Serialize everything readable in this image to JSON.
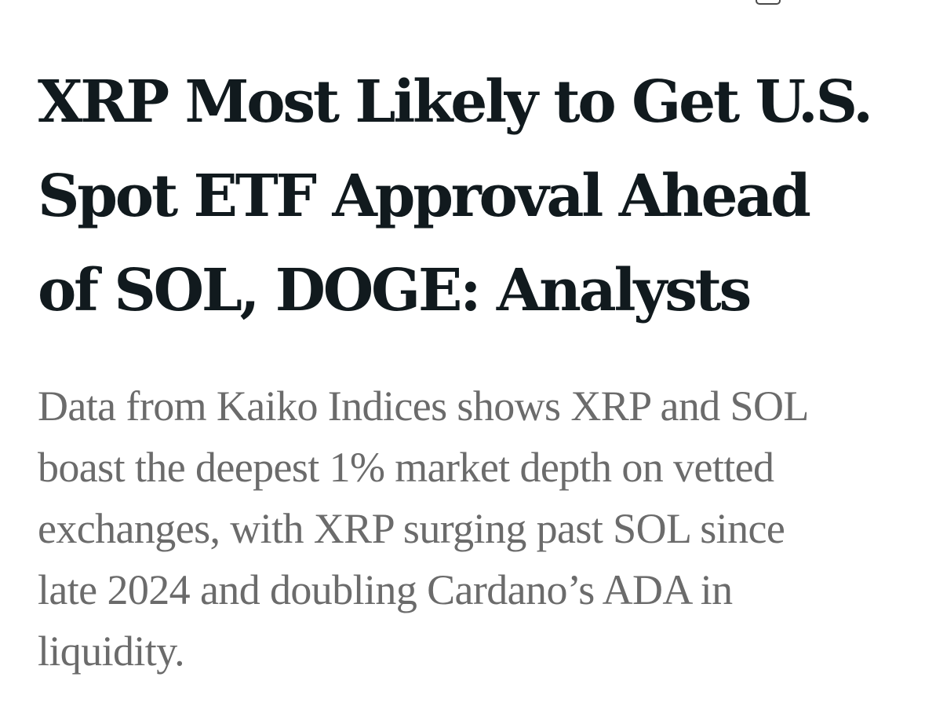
{
  "top_bar": {
    "icon": "rounded-square-icon"
  },
  "article": {
    "headline_lines": [
      "XRP Most Likely to Get U.S.",
      "Spot ETF Approval Ahead",
      "of SOL, DOGE: Analysts"
    ],
    "headline": "XRP Most Likely to Get U.S. Spot ETF Approval Ahead of SOL, DOGE: Analysts",
    "deck_lines": [
      "Data from Kaiko Indices shows XRP and SOL",
      "boast the deepest 1% market depth on vetted",
      "exchanges, with XRP surging past SOL since",
      "late 2024 and doubling Cardano’s ADA in",
      "liquidity."
    ],
    "deck": "Data from Kaiko Indices shows XRP and SOL boast the deepest 1% market depth on vetted exchanges, with XRP surging past SOL since late 2024 and doubling Cardano’s ADA in liquidity."
  },
  "colors": {
    "background": "#ffffff",
    "headline": "#111a1e",
    "deck": "#6b6b6b",
    "icon_stroke": "#4a4a4a"
  }
}
